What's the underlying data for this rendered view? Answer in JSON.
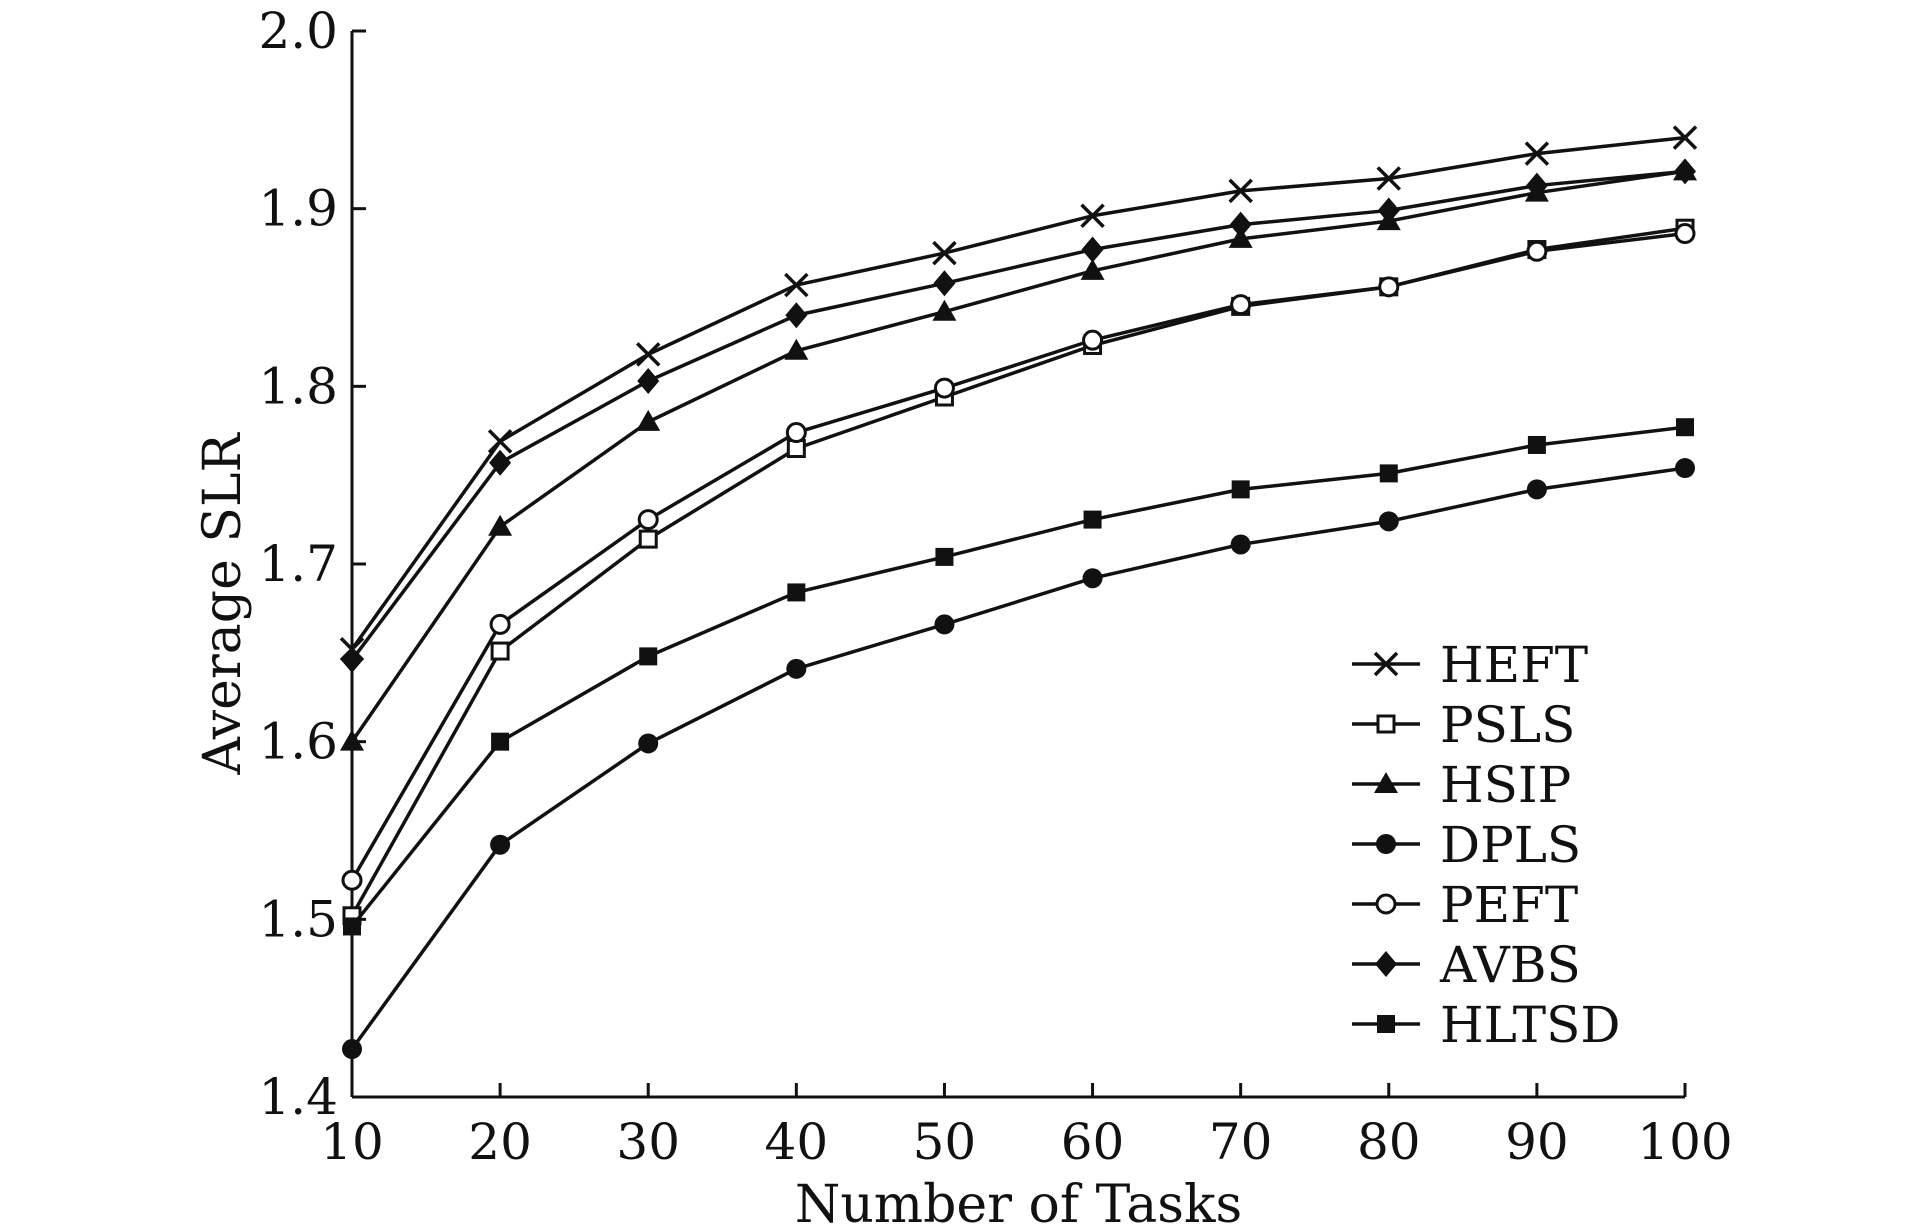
{
  "chart_data": {
    "type": "line",
    "xlabel": "Number of Tasks",
    "ylabel": "Average SLR",
    "xlim": [
      10,
      100
    ],
    "ylim": [
      1.4,
      2.0
    ],
    "x": [
      10,
      20,
      30,
      40,
      50,
      60,
      70,
      80,
      90,
      100
    ],
    "x_ticks": [
      "10",
      "20",
      "30",
      "40",
      "50",
      "60",
      "70",
      "80",
      "90",
      "100"
    ],
    "y_ticks": [
      "1.4",
      "1.5",
      "1.6",
      "1.7",
      "1.8",
      "1.9",
      "2.0"
    ],
    "grid": false,
    "legend_position": "lower-right",
    "series": [
      {
        "name": "HEFT",
        "marker": "x",
        "values": [
          1.652,
          1.769,
          1.818,
          1.857,
          1.875,
          1.896,
          1.91,
          1.917,
          1.931,
          1.94
        ]
      },
      {
        "name": "PSLS",
        "marker": "square-open",
        "values": [
          1.502,
          1.651,
          1.714,
          1.765,
          1.794,
          1.823,
          1.845,
          1.856,
          1.877,
          1.889
        ]
      },
      {
        "name": "HSIP",
        "marker": "triangle",
        "values": [
          1.6,
          1.721,
          1.78,
          1.82,
          1.842,
          1.865,
          1.883,
          1.893,
          1.909,
          1.921
        ]
      },
      {
        "name": "DPLS",
        "marker": "circle-filled",
        "values": [
          1.427,
          1.542,
          1.599,
          1.641,
          1.666,
          1.692,
          1.711,
          1.724,
          1.742,
          1.754
        ]
      },
      {
        "name": "PEFT",
        "marker": "circle-open",
        "values": [
          1.522,
          1.666,
          1.725,
          1.774,
          1.799,
          1.826,
          1.846,
          1.856,
          1.876,
          1.886
        ]
      },
      {
        "name": "AVBS",
        "marker": "diamond",
        "values": [
          1.646,
          1.757,
          1.803,
          1.84,
          1.858,
          1.877,
          1.891,
          1.899,
          1.913,
          1.921
        ]
      },
      {
        "name": "HLTSD",
        "marker": "square-filled",
        "values": [
          1.496,
          1.6,
          1.648,
          1.684,
          1.704,
          1.725,
          1.742,
          1.751,
          1.767,
          1.777
        ]
      }
    ]
  }
}
